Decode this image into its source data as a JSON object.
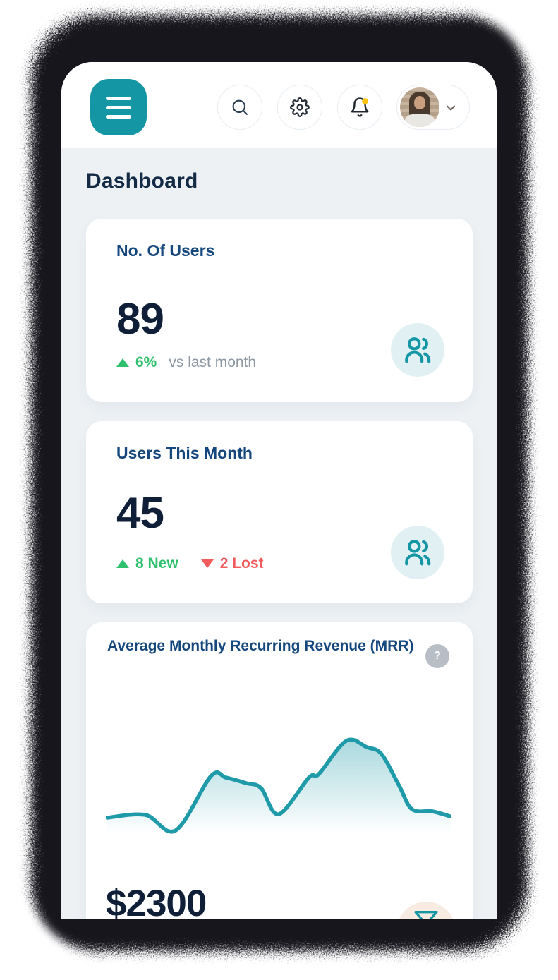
{
  "page": {
    "title": "Dashboard"
  },
  "header": {
    "menu_button": {
      "icon": "hamburger-icon"
    },
    "search_button": {
      "icon": "search-icon"
    },
    "settings_button": {
      "icon": "gear-icon"
    },
    "notifications_button": {
      "icon": "bell-icon",
      "has_unread": true
    },
    "profile": {
      "avatar": "user-photo",
      "chevron": "chevron-down-icon"
    }
  },
  "cards": [
    {
      "title": "No. Of Users",
      "value": "89",
      "trend_up": "6%",
      "trend_note": "vs last month",
      "icon": "users-icon"
    },
    {
      "title": "Users This Month",
      "value": "45",
      "trend_up": "8 New",
      "trend_down": "2 Lost",
      "icon": "users-icon"
    },
    {
      "title": "Average Monthly Recurring Revenue (MRR)",
      "value": "$2300",
      "help": "?",
      "icon": "funnel-icon"
    }
  ],
  "chart_data": {
    "type": "area",
    "title": "Average Monthly Recurring Revenue (MRR)",
    "current_value": "$2300",
    "axes_visible": false,
    "grid": false,
    "legend": false,
    "x_range": [
      0,
      488
    ],
    "y_range": [
      0,
      150
    ],
    "line_color": "#1e9aa8",
    "fill_style": "vertical teal gradient fading to transparent",
    "series": [
      {
        "name": "MRR",
        "points": [
          [
            2,
            23
          ],
          [
            56,
            27
          ],
          [
            99,
            5
          ],
          [
            149,
            82
          ],
          [
            170,
            80
          ],
          [
            199,
            72
          ],
          [
            220,
            65
          ],
          [
            245,
            28
          ],
          [
            288,
            80
          ],
          [
            302,
            85
          ],
          [
            341,
            132
          ],
          [
            370,
            123
          ],
          [
            391,
            113
          ],
          [
            416,
            68
          ],
          [
            434,
            35
          ],
          [
            463,
            32
          ],
          [
            488,
            25
          ]
        ]
      }
    ]
  },
  "colors": {
    "accent": "#1496a4",
    "frame": "#17191c",
    "bg": "#edf1f4",
    "heading": "#132b45",
    "card-title": "#15477d",
    "number": "#101f38",
    "muted": "#8f99a3",
    "green": "#2fc06e",
    "red": "#f25b5b",
    "badge-teal-bg": "#e1f1f3",
    "badge-peach-bg": "#f8ece2",
    "amber": "#ffc20e",
    "chart-line": "#1e9aa8",
    "icon-dark": "#232f3e",
    "circle-border": "#e7edf2",
    "help-bg": "#b8bec5"
  }
}
